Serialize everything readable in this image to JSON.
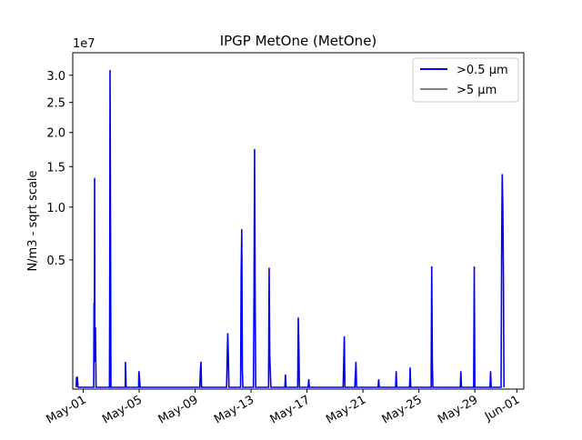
{
  "chart_data": {
    "type": "line",
    "title": "IPGP MetOne (MetOne)",
    "xlabel": "",
    "ylabel": "N/m3 - sqrt scale",
    "y_scale": "sqrt",
    "y_multiplier_label": "1e7",
    "y_ticks": [
      {
        "value": 5000000,
        "label": "0.5"
      },
      {
        "value": 10000000,
        "label": "1.0"
      },
      {
        "value": 15000000,
        "label": "1.5"
      },
      {
        "value": 20000000,
        "label": "2.0"
      },
      {
        "value": 25000000,
        "label": "2.5"
      },
      {
        "value": 30000000,
        "label": "3.0"
      }
    ],
    "ylim": [
      0,
      33000000
    ],
    "x_range_days": [
      "2024-04-30",
      "2024-06-01"
    ],
    "x_ticks": [
      {
        "date": "2024-05-01",
        "label": "May-01"
      },
      {
        "date": "2024-05-05",
        "label": "May-05"
      },
      {
        "date": "2024-05-09",
        "label": "May-09"
      },
      {
        "date": "2024-05-13",
        "label": "May-13"
      },
      {
        "date": "2024-05-17",
        "label": "May-17"
      },
      {
        "date": "2024-05-21",
        "label": "May-21"
      },
      {
        "date": "2024-05-25",
        "label": "May-25"
      },
      {
        "date": "2024-05-29",
        "label": "May-29"
      },
      {
        "date": "2024-06-01",
        "label": "Jun-01"
      }
    ],
    "legend": {
      "position": "upper right"
    },
    "grid": false,
    "series": [
      {
        "name": ">0.5 µm",
        "color": "#0000ff",
        "points": [
          [
            "2024-04-30T12:00",
            0
          ],
          [
            "2024-04-30T12:30",
            30000
          ],
          [
            "2024-04-30T14:00",
            30000
          ],
          [
            "2024-04-30T15:00",
            0
          ],
          [
            "2024-05-01T18:00",
            0
          ],
          [
            "2024-05-01T18:30",
            2200000
          ],
          [
            "2024-05-01T19:00",
            300000
          ],
          [
            "2024-05-01T19:30",
            13500000
          ],
          [
            "2024-05-01T20:00",
            200000
          ],
          [
            "2024-05-01T21:00",
            1100000
          ],
          [
            "2024-05-01T22:00",
            0
          ],
          [
            "2024-05-02T21:00",
            0
          ],
          [
            "2024-05-02T21:30",
            3500000
          ],
          [
            "2024-05-02T22:00",
            31000000
          ],
          [
            "2024-05-02T23:00",
            4800000
          ],
          [
            "2024-05-02T23:30",
            0
          ],
          [
            "2024-05-04T00:00",
            0
          ],
          [
            "2024-05-04T00:30",
            200000
          ],
          [
            "2024-05-04T01:30",
            0
          ],
          [
            "2024-05-04T23:00",
            0
          ],
          [
            "2024-05-04T23:30",
            80000
          ],
          [
            "2024-05-05T00:30",
            30000
          ],
          [
            "2024-05-05T01:30",
            0
          ],
          [
            "2024-05-09T08:00",
            0
          ],
          [
            "2024-05-09T09:00",
            80000
          ],
          [
            "2024-05-09T10:00",
            200000
          ],
          [
            "2024-05-09T11:00",
            0
          ],
          [
            "2024-05-11T06:00",
            0
          ],
          [
            "2024-05-11T07:00",
            250000
          ],
          [
            "2024-05-11T08:00",
            900000
          ],
          [
            "2024-05-11T09:00",
            320000
          ],
          [
            "2024-05-11T10:00",
            0
          ],
          [
            "2024-05-12T06:00",
            0
          ],
          [
            "2024-05-12T07:00",
            4000000
          ],
          [
            "2024-05-12T08:00",
            7700000
          ],
          [
            "2024-05-12T09:00",
            100000
          ],
          [
            "2024-05-12T10:00",
            0
          ],
          [
            "2024-05-13T04:00",
            0
          ],
          [
            "2024-05-13T05:00",
            2400000
          ],
          [
            "2024-05-13T06:00",
            17500000
          ],
          [
            "2024-05-13T07:00",
            2300000
          ],
          [
            "2024-05-13T08:00",
            0
          ],
          [
            "2024-05-14T06:00",
            0
          ],
          [
            "2024-05-14T07:00",
            4400000
          ],
          [
            "2024-05-14T08:00",
            300000
          ],
          [
            "2024-05-14T09:00",
            80000
          ],
          [
            "2024-05-14T10:00",
            0
          ],
          [
            "2024-05-15T10:00",
            0
          ],
          [
            "2024-05-15T11:00",
            50000
          ],
          [
            "2024-05-15T12:00",
            0
          ],
          [
            "2024-05-16T08:00",
            0
          ],
          [
            "2024-05-16T09:00",
            1500000
          ],
          [
            "2024-05-16T10:00",
            500000
          ],
          [
            "2024-05-16T11:00",
            0
          ],
          [
            "2024-05-17T02:00",
            0
          ],
          [
            "2024-05-17T03:00",
            20000
          ],
          [
            "2024-05-17T04:00",
            0
          ],
          [
            "2024-05-19T14:00",
            0
          ],
          [
            "2024-05-19T15:00",
            200000
          ],
          [
            "2024-05-19T16:00",
            800000
          ],
          [
            "2024-05-19T17:00",
            0
          ],
          [
            "2024-05-20T10:00",
            0
          ],
          [
            "2024-05-20T11:00",
            50000
          ],
          [
            "2024-05-20T12:00",
            200000
          ],
          [
            "2024-05-20T13:00",
            0
          ],
          [
            "2024-05-22T02:00",
            0
          ],
          [
            "2024-05-22T03:00",
            20000
          ],
          [
            "2024-05-22T04:00",
            0
          ],
          [
            "2024-05-23T08:00",
            0
          ],
          [
            "2024-05-23T09:00",
            80000
          ],
          [
            "2024-05-23T10:00",
            0
          ],
          [
            "2024-05-24T08:00",
            0
          ],
          [
            "2024-05-24T09:00",
            120000
          ],
          [
            "2024-05-24T10:00",
            0
          ],
          [
            "2024-05-25T21:00",
            0
          ],
          [
            "2024-05-25T22:00",
            4500000
          ],
          [
            "2024-05-25T23:00",
            200000
          ],
          [
            "2024-05-26T00:00",
            0
          ],
          [
            "2024-05-27T23:00",
            0
          ],
          [
            "2024-05-28T00:00",
            80000
          ],
          [
            "2024-05-28T01:00",
            0
          ],
          [
            "2024-05-28T22:00",
            0
          ],
          [
            "2024-05-28T23:00",
            4500000
          ],
          [
            "2024-05-29T00:00",
            0
          ],
          [
            "2024-05-30T02:00",
            0
          ],
          [
            "2024-05-30T03:00",
            80000
          ],
          [
            "2024-05-30T04:00",
            0
          ],
          [
            "2024-05-30T21:00",
            0
          ],
          [
            "2024-05-30T22:00",
            6000000
          ],
          [
            "2024-05-30T23:00",
            14000000
          ],
          [
            "2024-05-31T00:00",
            10000000
          ],
          [
            "2024-05-31T01:00",
            4000000
          ],
          [
            "2024-05-31T02:00",
            0
          ]
        ]
      },
      {
        "name": ">5 µm",
        "color": "#808080",
        "points": []
      }
    ]
  }
}
